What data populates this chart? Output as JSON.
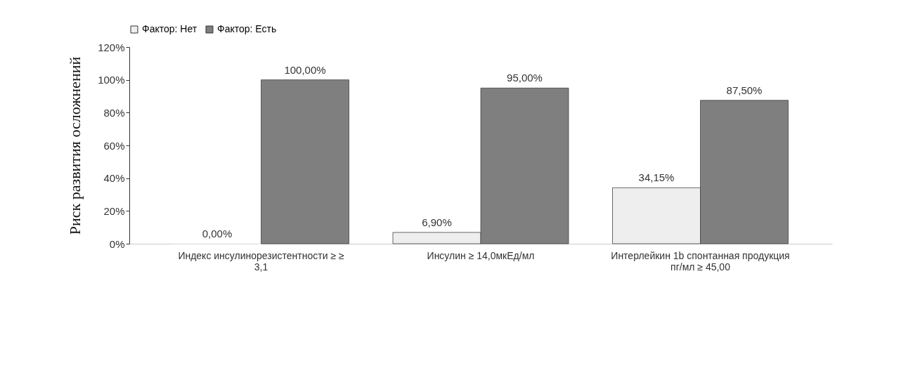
{
  "chart_data": {
    "type": "bar",
    "ylabel": "Риск развития осложнений",
    "categories": [
      "Индекс инсулинорезистентности ≥ ≥ 3,1",
      "Инсулин ≥ 14,0мкЕд/мл",
      "Интерлейкин 1b спонтанная продукция пг/мл ≥ 45,00"
    ],
    "series": [
      {
        "name": "Фактор: Нет",
        "color": "#eeeeee",
        "values": [
          0,
          6.9,
          34.15
        ],
        "value_labels": [
          "0,00%",
          "6,90%",
          "34,15%"
        ]
      },
      {
        "name": "Фактор: Есть",
        "color": "#7f7f7f",
        "values": [
          100,
          95,
          87.5
        ],
        "value_labels": [
          "100,00%",
          "95,00%",
          "87,50%"
        ]
      }
    ],
    "ylim": [
      0,
      120
    ],
    "yticks": [
      {
        "value": 0,
        "label": "0%"
      },
      {
        "value": 20,
        "label": "20%"
      },
      {
        "value": 40,
        "label": "40%"
      },
      {
        "value": 60,
        "label": "60%"
      },
      {
        "value": 80,
        "label": "80%"
      },
      {
        "value": 100,
        "label": "100%"
      },
      {
        "value": 120,
        "label": "120%"
      }
    ],
    "grid": false,
    "legend": "top"
  }
}
